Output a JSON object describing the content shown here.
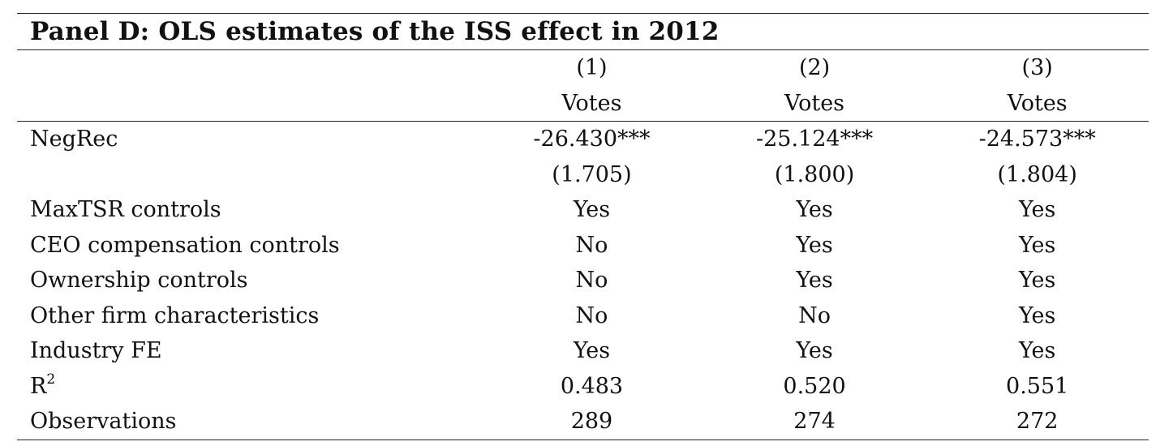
{
  "panel_title": "Panel D: OLS estimates of the ISS effect in 2012",
  "columns": {
    "numbers": [
      "(1)",
      "(2)",
      "(3)"
    ],
    "dependent_vars": [
      "Votes",
      "Votes",
      "Votes"
    ]
  },
  "rows": [
    {
      "label": "NegRec",
      "values": [
        "-26.430***",
        "-25.124***",
        "-24.573***"
      ]
    },
    {
      "label": "",
      "values": [
        "(1.705)",
        "(1.800)",
        "(1.804)"
      ]
    },
    {
      "label": "MaxTSR controls",
      "values": [
        "Yes",
        "Yes",
        "Yes"
      ]
    },
    {
      "label": "CEO compensation controls",
      "values": [
        "No",
        "Yes",
        "Yes"
      ]
    },
    {
      "label": "Ownership controls",
      "values": [
        "No",
        "Yes",
        "Yes"
      ]
    },
    {
      "label": "Other firm characteristics",
      "values": [
        "No",
        "No",
        "Yes"
      ]
    },
    {
      "label": "Industry FE",
      "values": [
        "Yes",
        "Yes",
        "Yes"
      ]
    },
    {
      "label": "R",
      "label_sup": "2",
      "values": [
        "0.483",
        "0.520",
        "0.551"
      ]
    },
    {
      "label": "Observations",
      "values": [
        "289",
        "274",
        "272"
      ]
    }
  ]
}
